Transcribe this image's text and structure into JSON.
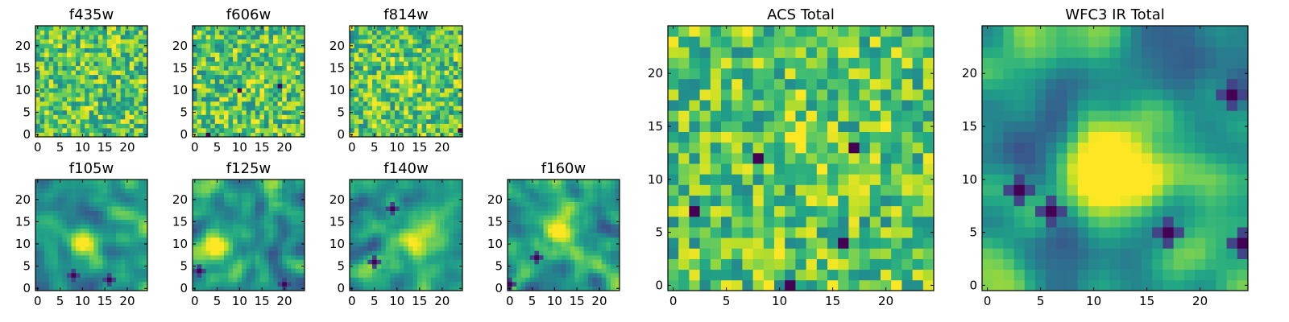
{
  "chart_data": [
    {
      "type": "heatmap",
      "title": "f435w",
      "grid_size": 25,
      "xlim": [
        0,
        24
      ],
      "ylim": [
        0,
        24
      ],
      "xticks": [
        0,
        5,
        10,
        15,
        20
      ],
      "yticks": [
        0,
        5,
        10,
        15,
        20
      ],
      "colormap": "viridis",
      "description_pattern": "noise",
      "peak": null,
      "holes": []
    },
    {
      "type": "heatmap",
      "title": "f606w",
      "grid_size": 25,
      "xlim": [
        0,
        24
      ],
      "ylim": [
        0,
        24
      ],
      "xticks": [
        0,
        5,
        10,
        15,
        20
      ],
      "yticks": [
        0,
        5,
        10,
        15,
        20
      ],
      "colormap": "viridis",
      "description_pattern": "noise",
      "peak": [
        13,
        12
      ],
      "holes": [
        [
          3,
          0
        ],
        [
          19,
          11
        ],
        [
          10,
          10
        ]
      ]
    },
    {
      "type": "heatmap",
      "title": "f814w",
      "grid_size": 25,
      "xlim": [
        0,
        24
      ],
      "ylim": [
        0,
        24
      ],
      "xticks": [
        0,
        5,
        10,
        15,
        20
      ],
      "yticks": [
        0,
        5,
        10,
        15,
        20
      ],
      "colormap": "viridis",
      "description_pattern": "noise",
      "peak": [
        12,
        13
      ],
      "holes": [
        [
          24,
          1
        ]
      ]
    },
    {
      "type": "heatmap",
      "title": "f105w",
      "grid_size": 25,
      "xlim": [
        0,
        24
      ],
      "ylim": [
        0,
        24
      ],
      "xticks": [
        0,
        5,
        10,
        15,
        20
      ],
      "yticks": [
        0,
        5,
        10,
        15,
        20
      ],
      "colormap": "viridis",
      "description_pattern": "smooth",
      "peak": [
        10,
        10
      ],
      "holes": [
        [
          8,
          3
        ],
        [
          16,
          2
        ]
      ]
    },
    {
      "type": "heatmap",
      "title": "f125w",
      "grid_size": 25,
      "xlim": [
        0,
        24
      ],
      "ylim": [
        0,
        24
      ],
      "xticks": [
        0,
        5,
        10,
        15,
        20
      ],
      "yticks": [
        0,
        5,
        10,
        15,
        20
      ],
      "colormap": "viridis",
      "description_pattern": "smooth",
      "peak": [
        5,
        9
      ],
      "holes": [
        [
          1,
          4
        ],
        [
          20,
          1
        ]
      ]
    },
    {
      "type": "heatmap",
      "title": "f140w",
      "grid_size": 25,
      "xlim": [
        0,
        24
      ],
      "ylim": [
        0,
        24
      ],
      "xticks": [
        0,
        5,
        10,
        15,
        20
      ],
      "yticks": [
        0,
        5,
        10,
        15,
        20
      ],
      "colormap": "viridis",
      "description_pattern": "smooth",
      "peak": [
        14,
        11
      ],
      "holes": [
        [
          9,
          18
        ],
        [
          5,
          6
        ]
      ]
    },
    {
      "type": "heatmap",
      "title": "f160w",
      "grid_size": 25,
      "xlim": [
        0,
        24
      ],
      "ylim": [
        0,
        24
      ],
      "xticks": [
        0,
        5,
        10,
        15,
        20
      ],
      "yticks": [
        0,
        5,
        10,
        15,
        20
      ],
      "colormap": "viridis",
      "description_pattern": "smooth",
      "peak": [
        11,
        13
      ],
      "holes": [
        [
          6,
          7
        ],
        [
          0,
          1
        ]
      ]
    },
    {
      "type": "heatmap",
      "title": "ACS Total",
      "grid_size": 25,
      "xlim": [
        0,
        24
      ],
      "ylim": [
        0,
        24
      ],
      "xticks": [
        0,
        5,
        10,
        15,
        20
      ],
      "yticks": [
        0,
        5,
        10,
        15,
        20
      ],
      "colormap": "viridis",
      "description_pattern": "noise",
      "peak": [
        12,
        14
      ],
      "holes": [
        [
          8,
          12
        ],
        [
          16,
          4
        ],
        [
          11,
          0
        ],
        [
          17,
          13
        ],
        [
          2,
          7
        ]
      ]
    },
    {
      "type": "heatmap",
      "title": "WFC3 IR Total",
      "grid_size": 25,
      "xlim": [
        0,
        24
      ],
      "ylim": [
        0,
        24
      ],
      "xticks": [
        0,
        5,
        10,
        15,
        20
      ],
      "yticks": [
        0,
        5,
        10,
        15,
        20
      ],
      "colormap": "viridis",
      "description_pattern": "smooth_strong",
      "peak": [
        12,
        12
      ],
      "holes": [
        [
          6,
          7
        ],
        [
          17,
          5
        ],
        [
          24,
          4
        ],
        [
          3,
          9
        ],
        [
          23,
          18
        ]
      ]
    }
  ]
}
